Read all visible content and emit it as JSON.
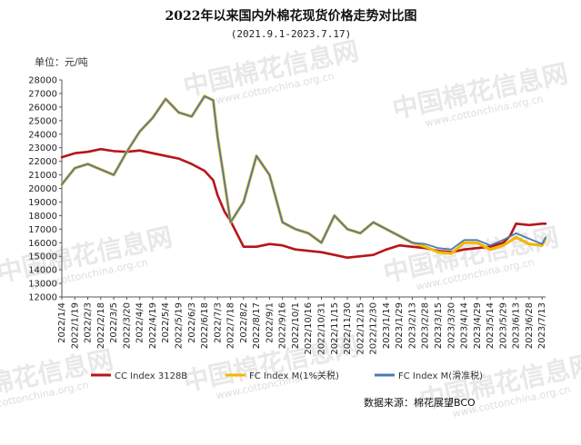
{
  "chart_data": {
    "type": "line",
    "title": "2022年以来国内外棉花现货价格走势对比图",
    "subtitle": "(2021.9.1-2023.7.17)",
    "unit_label": "单位：元/吨",
    "source": "数据来源：棉花展望BCO",
    "watermark": "中国棉花信息网",
    "watermark_url": "www.cottonchina.org.cn",
    "ylim": [
      12000,
      28000
    ],
    "yticks": [
      12000,
      13000,
      14000,
      15000,
      16000,
      17000,
      18000,
      19000,
      20000,
      21000,
      22000,
      23000,
      24000,
      25000,
      26000,
      27000,
      28000
    ],
    "x_ticks": [
      "2022/1/4",
      "2022/1/19",
      "2022/2/3",
      "2022/2/18",
      "2022/3/5",
      "2022/3/20",
      "2022/4/4",
      "2022/4/19",
      "2022/5/4",
      "2022/5/19",
      "2022/6/3",
      "2022/6/18",
      "2022/7/3",
      "2022/7/18",
      "2022/8/2",
      "2022/8/17",
      "2022/9/1",
      "2022/9/16",
      "2022/10/1",
      "2022/10/16",
      "2022/10/31",
      "2022/11/15",
      "2022/11/30",
      "2022/12/15",
      "2022/12/30",
      "2023/1/14",
      "2023/1/29",
      "2023/2/13",
      "2023/2/28",
      "2023/3/15",
      "2023/3/30",
      "2023/4/14",
      "2023/4/29",
      "2023/5/14",
      "2023/5/29",
      "2023/6/13",
      "2023/6/28",
      "2023/7/13"
    ],
    "legend_position": "bottom",
    "grid": false,
    "series": [
      {
        "name": "CC Index 3128B",
        "color": "#b8141b",
        "x": [
          "2022/1/4",
          "2022/1/19",
          "2022/2/3",
          "2022/2/18",
          "2022/3/5",
          "2022/3/20",
          "2022/4/4",
          "2022/4/19",
          "2022/5/4",
          "2022/5/19",
          "2022/6/3",
          "2022/6/18",
          "2022/6/28",
          "2022/7/3",
          "2022/7/11",
          "2022/7/18",
          "2022/8/2",
          "2022/8/17",
          "2022/9/1",
          "2022/9/16",
          "2022/10/1",
          "2022/10/16",
          "2022/10/31",
          "2022/11/15",
          "2022/11/30",
          "2022/12/15",
          "2022/12/30",
          "2023/1/14",
          "2023/1/29",
          "2023/2/13",
          "2023/2/28",
          "2023/3/15",
          "2023/3/30",
          "2023/4/14",
          "2023/4/29",
          "2023/5/14",
          "2023/5/29",
          "2023/6/6",
          "2023/6/13",
          "2023/6/28",
          "2023/7/13",
          "2023/7/17"
        ],
        "values": [
          22300,
          22600,
          22700,
          22900,
          22750,
          22700,
          22800,
          22600,
          22400,
          22200,
          21800,
          21300,
          20600,
          19500,
          18300,
          17600,
          15700,
          15700,
          15900,
          15800,
          15500,
          15400,
          15300,
          15100,
          14900,
          15000,
          15100,
          15500,
          15800,
          15700,
          15600,
          15400,
          15300,
          15500,
          15600,
          15700,
          16000,
          16500,
          17400,
          17300,
          17400,
          17400
        ]
      },
      {
        "name": "FC Index M(1%关税)",
        "color": "#f2b800",
        "x": [
          "2022/1/4",
          "2022/1/19",
          "2022/2/3",
          "2022/2/18",
          "2022/3/5",
          "2022/3/20",
          "2022/4/4",
          "2022/4/19",
          "2022/5/4",
          "2022/5/19",
          "2022/6/3",
          "2022/6/18",
          "2022/6/28",
          "2022/7/3",
          "2022/7/11",
          "2022/7/18",
          "2022/8/2",
          "2022/8/17",
          "2022/9/1",
          "2022/9/16",
          "2022/10/1",
          "2022/10/16",
          "2022/10/31",
          "2022/11/15",
          "2022/11/30",
          "2022/12/15",
          "2022/12/30",
          "2023/1/14",
          "2023/1/29",
          "2023/2/13",
          "2023/2/28",
          "2023/3/15",
          "2023/3/30",
          "2023/4/14",
          "2023/4/29",
          "2023/5/14",
          "2023/5/29",
          "2023/6/13",
          "2023/6/28",
          "2023/7/13",
          "2023/7/17"
        ],
        "values": [
          20300,
          21500,
          21800,
          21400,
          21000,
          22700,
          24200,
          25200,
          26600,
          25600,
          25300,
          26800,
          26500,
          23800,
          20500,
          17500,
          19000,
          22400,
          21000,
          17500,
          17000,
          16700,
          16000,
          18000,
          17000,
          16700,
          17500,
          17000,
          16500,
          16000,
          15700,
          15300,
          15200,
          16000,
          16000,
          15500,
          15800,
          16400,
          15900,
          15800,
          16300
        ]
      },
      {
        "name": "FC Index M(滑准税)",
        "color": "#4a7bb5",
        "x": [
          "2022/1/4",
          "2022/1/19",
          "2022/2/3",
          "2022/2/18",
          "2022/3/5",
          "2022/3/20",
          "2022/4/4",
          "2022/4/19",
          "2022/5/4",
          "2022/5/19",
          "2022/6/3",
          "2022/6/18",
          "2022/6/28",
          "2022/7/3",
          "2022/7/11",
          "2022/7/18",
          "2022/8/2",
          "2022/8/17",
          "2022/9/1",
          "2022/9/16",
          "2022/10/1",
          "2022/10/16",
          "2022/10/31",
          "2022/11/15",
          "2022/11/30",
          "2022/12/15",
          "2022/12/30",
          "2023/1/14",
          "2023/1/29",
          "2023/2/13",
          "2023/2/28",
          "2023/3/15",
          "2023/3/30",
          "2023/4/14",
          "2023/4/29",
          "2023/5/14",
          "2023/5/29",
          "2023/6/13",
          "2023/6/28",
          "2023/7/13",
          "2023/7/17"
        ],
        "values": [
          20300,
          21500,
          21800,
          21400,
          21000,
          22700,
          24200,
          25200,
          26600,
          25600,
          25300,
          26800,
          26500,
          23800,
          20500,
          17500,
          19000,
          22400,
          21000,
          17500,
          17000,
          16700,
          16000,
          18000,
          17000,
          16700,
          17500,
          17000,
          16500,
          16000,
          15900,
          15600,
          15500,
          16200,
          16200,
          15800,
          16200,
          16700,
          16300,
          15900,
          16400
        ]
      }
    ]
  }
}
